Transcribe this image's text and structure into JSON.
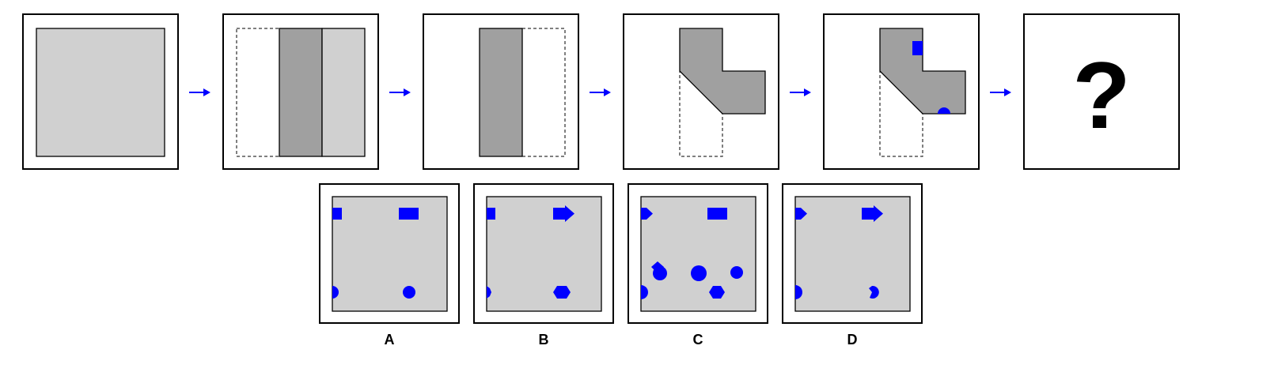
{
  "puzzle": {
    "question_mark": "?",
    "colors": {
      "sheet": "#d0d0d0",
      "folded": "#a0a0a0",
      "mark": "#0000ff",
      "border": "#000000"
    },
    "steps": [
      {
        "name": "unfolded-square"
      },
      {
        "name": "fold-left-third"
      },
      {
        "name": "fold-right-third"
      },
      {
        "name": "fold-diagonal"
      },
      {
        "name": "cut-shapes"
      },
      {
        "name": "answer-unknown"
      }
    ],
    "options": [
      {
        "label": "A"
      },
      {
        "label": "B"
      },
      {
        "label": "C"
      },
      {
        "label": "D"
      }
    ]
  }
}
